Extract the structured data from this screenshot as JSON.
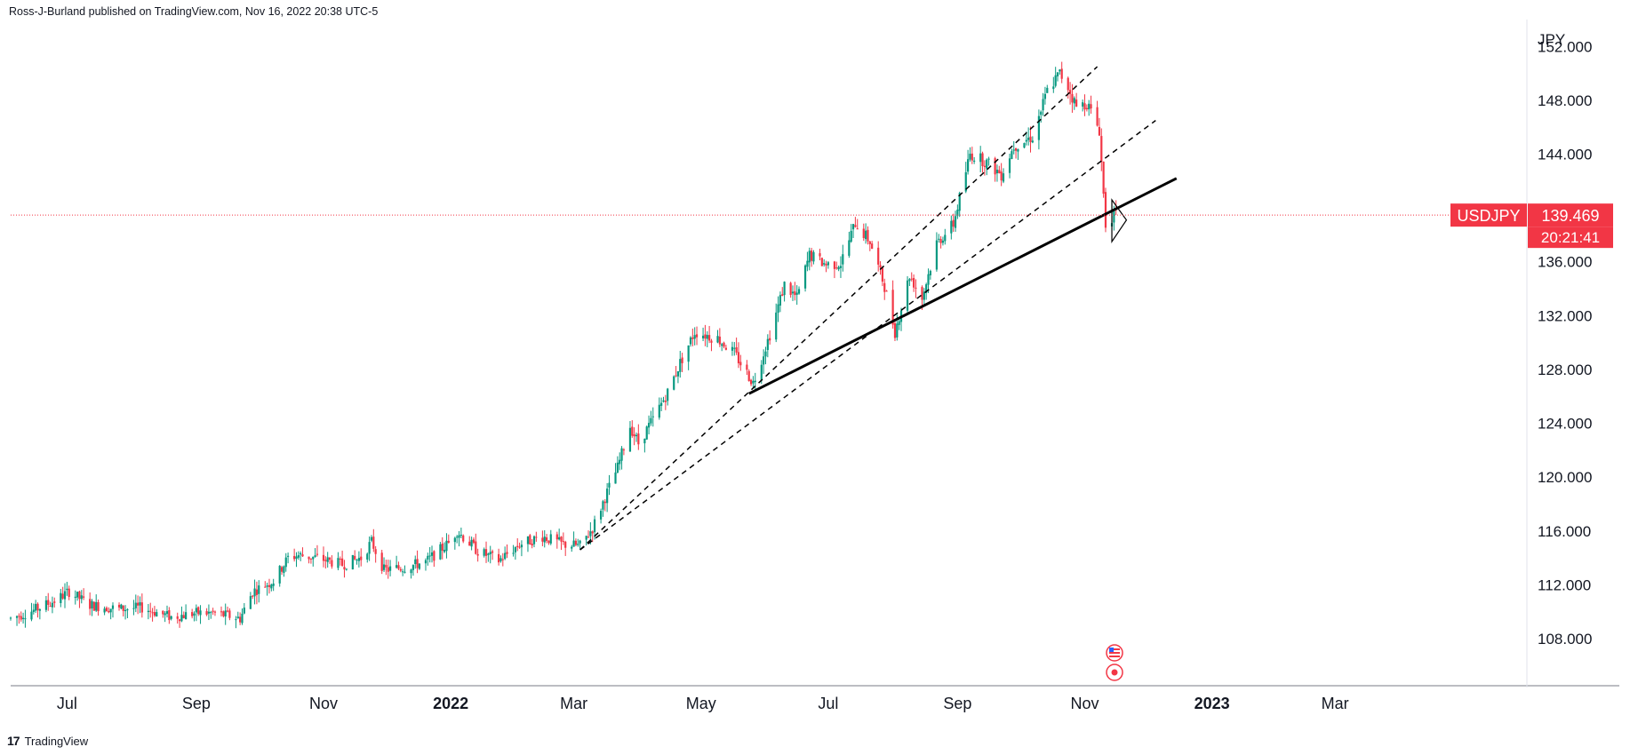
{
  "header": {
    "publisher": "Ross-J-Burland published on TradingView.com, Nov 16, 2022 20:38 UTC-5"
  },
  "footer": {
    "brand": "TradingView",
    "logo_glyph": "17"
  },
  "colors": {
    "up": "#089981",
    "down": "#f23645",
    "trendline": "#000000",
    "price_line": "#f23645",
    "axis_text": "#131722"
  },
  "chart_data": {
    "type": "candlestick",
    "symbol": "USDJPY",
    "currency_label": "JPY",
    "last_price": "139.469",
    "countdown": "20:21:41",
    "y_ticks": [
      "108.000",
      "112.000",
      "116.000",
      "120.000",
      "124.000",
      "128.000",
      "132.000",
      "136.000",
      "144.000",
      "148.000",
      "152.000"
    ],
    "ylim": [
      104.5,
      154
    ],
    "x_ticks": [
      {
        "label": "Jul",
        "date": "2021-07-01",
        "bold": false
      },
      {
        "label": "Sep",
        "date": "2021-09-01",
        "bold": false
      },
      {
        "label": "Nov",
        "date": "2021-11-01",
        "bold": false
      },
      {
        "label": "2022",
        "date": "2022-01-01",
        "bold": true
      },
      {
        "label": "Mar",
        "date": "2022-03-01",
        "bold": false
      },
      {
        "label": "May",
        "date": "2022-05-01",
        "bold": false
      },
      {
        "label": "Jul",
        "date": "2022-07-01",
        "bold": false
      },
      {
        "label": "Sep",
        "date": "2022-09-01",
        "bold": false
      },
      {
        "label": "Nov",
        "date": "2022-11-01",
        "bold": false
      },
      {
        "label": "2023",
        "date": "2023-01-01",
        "bold": true
      },
      {
        "label": "Mar",
        "date": "2023-03-01",
        "bold": false
      }
    ],
    "xlim": [
      "2021-06-04",
      "2023-06-01"
    ],
    "price_path": [
      [
        "2021-06-04",
        109.5
      ],
      [
        "2021-06-15",
        110.1
      ],
      [
        "2021-06-25",
        110.8
      ],
      [
        "2021-07-02",
        111.5
      ],
      [
        "2021-07-12",
        110.5
      ],
      [
        "2021-07-26",
        110.2
      ],
      [
        "2021-08-06",
        110.3
      ],
      [
        "2021-08-20",
        109.6
      ],
      [
        "2021-09-01",
        109.9
      ],
      [
        "2021-09-10",
        109.9
      ],
      [
        "2021-09-22",
        109.5
      ],
      [
        "2021-09-28",
        111.5
      ],
      [
        "2021-10-08",
        112.3
      ],
      [
        "2021-10-15",
        114.0
      ],
      [
        "2021-10-20",
        114.2
      ],
      [
        "2021-10-29",
        114.0
      ],
      [
        "2021-11-10",
        113.5
      ],
      [
        "2021-11-19",
        114.0
      ],
      [
        "2021-11-24",
        115.2
      ],
      [
        "2021-11-30",
        113.1
      ],
      [
        "2021-12-10",
        113.3
      ],
      [
        "2021-12-20",
        113.7
      ],
      [
        "2021-12-31",
        115.1
      ],
      [
        "2022-01-04",
        116.0
      ],
      [
        "2022-01-14",
        114.5
      ],
      [
        "2022-01-24",
        113.8
      ],
      [
        "2022-02-03",
        115.0
      ],
      [
        "2022-02-14",
        115.6
      ],
      [
        "2022-02-24",
        115.0
      ],
      [
        "2022-03-04",
        114.9
      ],
      [
        "2022-03-10",
        116.2
      ],
      [
        "2022-03-16",
        118.5
      ],
      [
        "2022-03-22",
        120.7
      ],
      [
        "2022-03-28",
        123.8
      ],
      [
        "2022-04-01",
        122.5
      ],
      [
        "2022-04-08",
        124.3
      ],
      [
        "2022-04-15",
        126.3
      ],
      [
        "2022-04-21",
        128.5
      ],
      [
        "2022-04-28",
        130.8
      ],
      [
        "2022-05-09",
        130.3
      ],
      [
        "2022-05-17",
        129.2
      ],
      [
        "2022-05-26",
        127.0
      ],
      [
        "2022-06-03",
        130.6
      ],
      [
        "2022-06-10",
        134.3
      ],
      [
        "2022-06-16",
        133.3
      ],
      [
        "2022-06-22",
        136.5
      ],
      [
        "2022-06-30",
        135.8
      ],
      [
        "2022-07-07",
        135.9
      ],
      [
        "2022-07-14",
        138.9
      ],
      [
        "2022-07-21",
        137.5
      ],
      [
        "2022-07-28",
        134.2
      ],
      [
        "2022-08-02",
        130.8
      ],
      [
        "2022-08-09",
        135.0
      ],
      [
        "2022-08-15",
        133.3
      ],
      [
        "2022-08-22",
        137.4
      ],
      [
        "2022-08-30",
        138.8
      ],
      [
        "2022-09-07",
        144.0
      ],
      [
        "2022-09-14",
        143.5
      ],
      [
        "2022-09-22",
        142.5
      ],
      [
        "2022-09-28",
        144.6
      ],
      [
        "2022-10-07",
        145.3
      ],
      [
        "2022-10-14",
        148.7
      ],
      [
        "2022-10-20",
        150.0
      ],
      [
        "2022-10-24",
        149.0
      ],
      [
        "2022-10-28",
        147.5
      ],
      [
        "2022-11-02",
        147.8
      ],
      [
        "2022-11-08",
        145.8
      ],
      [
        "2022-11-10",
        141.0
      ],
      [
        "2022-11-11",
        138.8
      ],
      [
        "2022-11-15",
        139.5
      ],
      [
        "2022-11-16",
        139.469
      ]
    ],
    "trendlines": [
      {
        "style": "solid",
        "width": 3,
        "from": [
          "2022-05-24",
          126.2
        ],
        "to": [
          "2022-12-15",
          142.2
        ]
      },
      {
        "style": "dashed",
        "width": 1.5,
        "from": [
          "2022-03-04",
          114.6
        ],
        "to": [
          "2022-12-05",
          146.5
        ]
      },
      {
        "style": "dashed",
        "width": 1.5,
        "from": [
          "2022-03-04",
          114.6
        ],
        "to": [
          "2022-11-07",
          150.5
        ]
      }
    ],
    "pattern_triangle": [
      [
        "2022-11-14",
        140.6
      ],
      [
        "2022-11-21",
        139.1
      ],
      [
        "2022-11-14",
        137.5
      ]
    ],
    "event_markers": [
      {
        "date": "2022-11-14",
        "icon": "us-flag-icon"
      },
      {
        "date": "2022-11-14",
        "icon": "target-icon"
      }
    ]
  }
}
